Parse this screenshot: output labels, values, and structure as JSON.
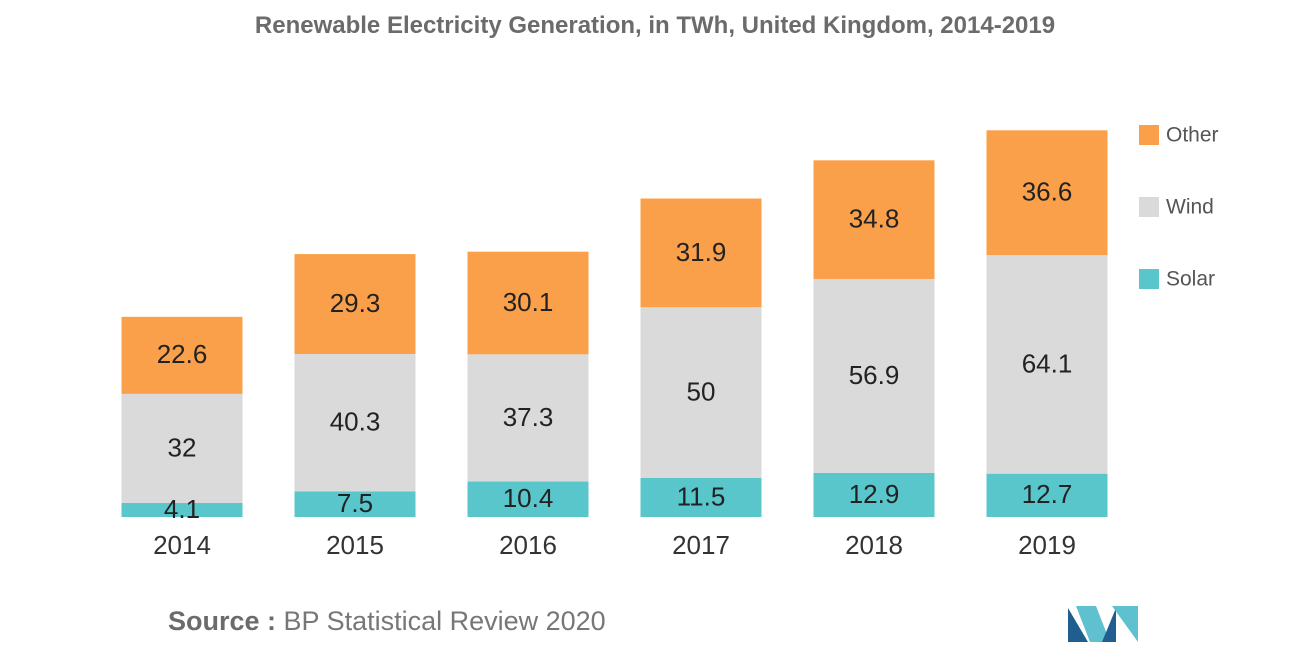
{
  "colors": {
    "other": "#fba04a",
    "wind": "#dadada",
    "solar": "#58c6cb",
    "logo_dark": "#1f5e8e",
    "logo_light": "#5fc0cf"
  },
  "chart_data": {
    "type": "bar",
    "stacked": true,
    "title": "Renewable Electricity Generation, in TWh, United Kingdom, 2014-2019",
    "categories": [
      "2014",
      "2015",
      "2016",
      "2017",
      "2018",
      "2019"
    ],
    "series": [
      {
        "name": "Solar",
        "color_key": "solar",
        "values": [
          4.1,
          7.5,
          10.4,
          11.5,
          12.9,
          12.7
        ],
        "labels": [
          "4.1",
          "7.5",
          "10.4",
          "11.5",
          "12.9",
          "12.7"
        ]
      },
      {
        "name": "Wind",
        "color_key": "wind",
        "values": [
          32,
          40.3,
          37.3,
          50,
          56.9,
          64.1
        ],
        "labels": [
          "32",
          "40.3",
          "37.3",
          "50",
          "56.9",
          "64.1"
        ]
      },
      {
        "name": "Other",
        "color_key": "other",
        "values": [
          22.6,
          29.3,
          30.1,
          31.9,
          34.8,
          36.6
        ],
        "labels": [
          "22.6",
          "29.3",
          "30.1",
          "31.9",
          "34.8",
          "36.6"
        ]
      }
    ],
    "legend": [
      "Other",
      "Wind",
      "Solar"
    ],
    "legend_position": "right",
    "xlabel": "",
    "ylabel": "",
    "ylim": [
      0,
      115
    ],
    "grid": false
  },
  "source": {
    "prefix": "Source :",
    "text": " BP Statistical Review 2020"
  },
  "logo": {
    "icon": "mordor-intelligence-logo-icon"
  }
}
